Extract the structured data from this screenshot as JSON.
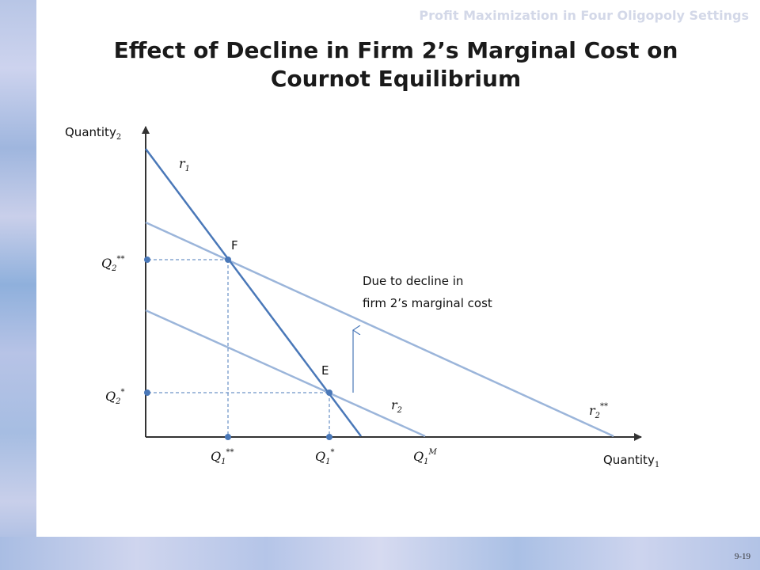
{
  "slide": {
    "header": "Profit Maximization in Four Oligopoly Settings",
    "title_line1": "Effect of Decline in Firm 2’s Marginal Cost on",
    "title_line2": "Cournot Equilibrium",
    "page_number": "9-19"
  },
  "diagram": {
    "y_axis_label": "Quantity",
    "y_axis_sub": "2",
    "x_axis_label": "Quantity",
    "x_axis_sub": "1",
    "curves": {
      "r1": {
        "symbol": "r",
        "sub": "1"
      },
      "r2": {
        "symbol": "r",
        "sub": "2"
      },
      "r2_star": {
        "symbol": "r",
        "sub": "2",
        "sup": "**"
      }
    },
    "points": {
      "F": "F",
      "E": "E"
    },
    "ticks": {
      "q2_double": {
        "symbol": "Q",
        "sub": "2",
        "sup": "**"
      },
      "q2_single": {
        "symbol": "Q",
        "sub": "2",
        "sup": "*"
      },
      "q1_double": {
        "symbol": "Q",
        "sub": "1",
        "sup": "**"
      },
      "q1_single": {
        "symbol": "Q",
        "sub": "1",
        "sup": "*"
      },
      "q1_m": {
        "symbol": "Q",
        "sub": "1",
        "sup": "M"
      }
    },
    "annotation_line1": "Due to decline in",
    "annotation_line2": "firm 2’s marginal cost",
    "colors": {
      "r1": "#4a78b8",
      "r2": "#9bb5da",
      "axis": "#333333",
      "guide": "#4a78b8"
    }
  }
}
